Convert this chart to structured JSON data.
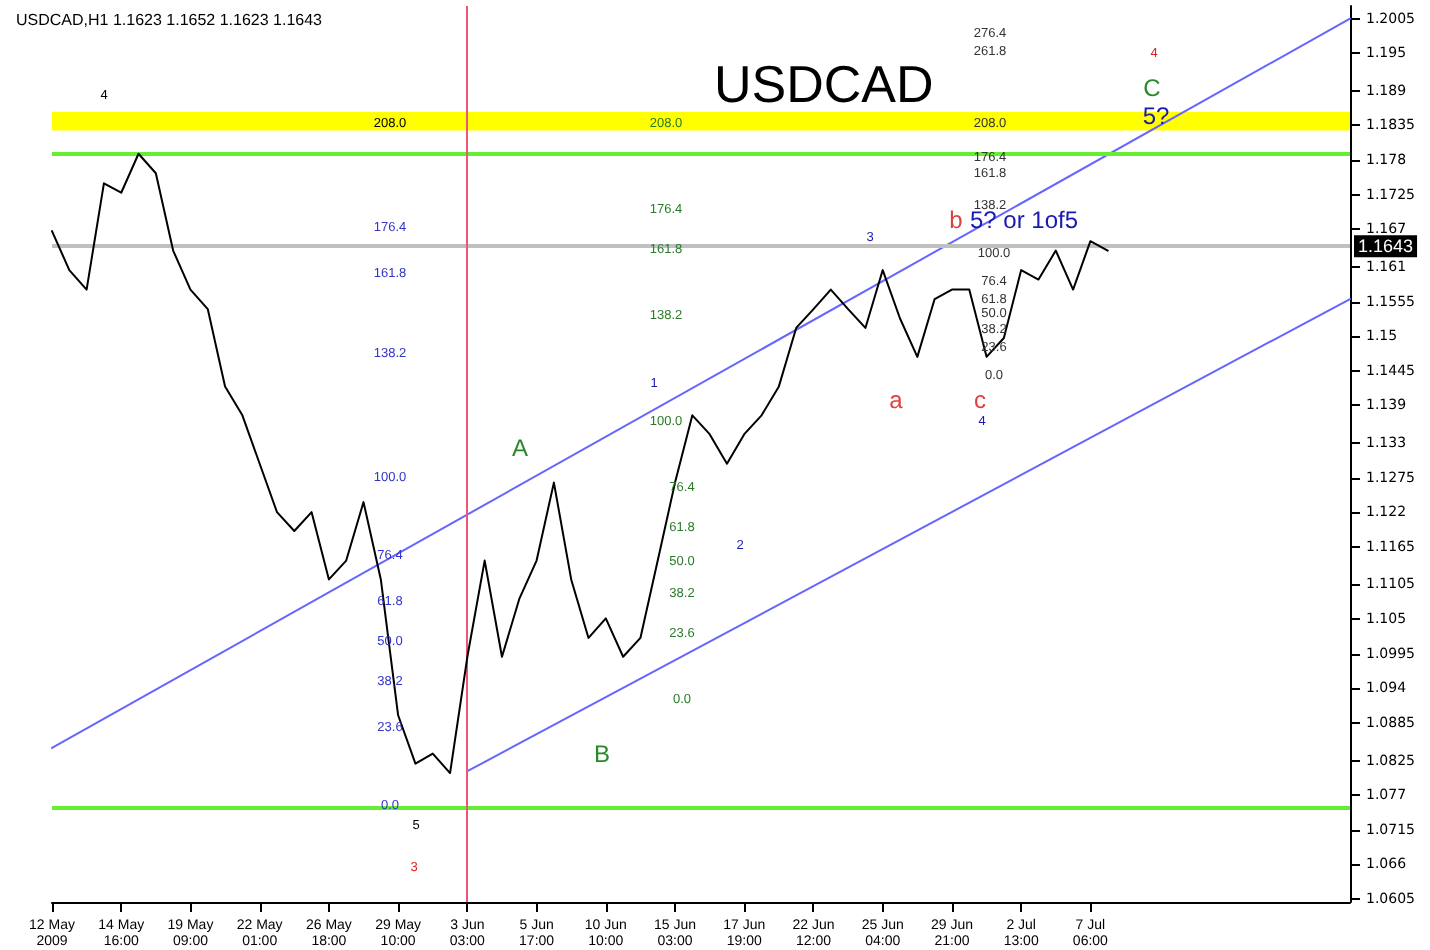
{
  "chart_data": {
    "type": "line",
    "title": "USDCAD",
    "subtitle": "USDCAD,H1 1.1623 1.1652 1.1623 1.1643",
    "categories": [
      "12 May 2009",
      null,
      null,
      null,
      "14 May 16:00",
      null,
      null,
      null,
      "19 May 09:00",
      null,
      null,
      null,
      "22 May 01:00",
      null,
      null,
      null,
      "26 May 18:00",
      null,
      null,
      null,
      "29 May 10:00",
      null,
      null,
      null,
      "3 Jun 03:00",
      null,
      null,
      null,
      "5 Jun 17:00",
      null,
      null,
      null,
      "10 Jun 10:00",
      null,
      null,
      null,
      "15 Jun 03:00",
      null,
      null,
      null,
      "17 Jun 19:00",
      null,
      null,
      null,
      "22 Jun 12:00",
      null,
      null,
      null,
      "25 Jun 04:00",
      null,
      null,
      null,
      "29 Jun 21:00",
      null,
      null,
      null,
      "2 Jul 13:00",
      null,
      null,
      null,
      "7 Jul 06:00",
      null,
      null,
      null,
      null,
      null,
      null,
      null,
      null,
      null,
      null,
      null,
      null,
      null,
      null,
      null
    ],
    "series": [
      {
        "color": "#000000",
        "values": [
          1.1667,
          1.1605,
          1.1574,
          1.1743,
          1.1728,
          1.179,
          1.1759,
          1.1636,
          1.1574,
          1.1543,
          1.142,
          1.1374,
          1.1297,
          1.122,
          1.119,
          1.122,
          1.1113,
          1.1143,
          1.1236,
          1.1113,
          1.0897,
          1.082,
          1.0836,
          1.0805,
          1.099,
          1.1143,
          1.099,
          1.1082,
          1.1143,
          1.1267,
          1.1113,
          1.102,
          1.1051,
          1.099,
          1.102,
          1.1143,
          1.1267,
          1.1374,
          1.1344,
          1.1297,
          1.1344,
          1.1374,
          1.142,
          1.1513,
          1.1543,
          1.1574,
          1.1543,
          1.1513,
          1.1605,
          1.1528,
          1.1467,
          1.1559,
          1.1574,
          1.1574,
          1.1467,
          1.1497,
          1.1605,
          1.159,
          1.1636,
          1.1574,
          1.1651,
          1.1636,
          null,
          null,
          null,
          null,
          null,
          null,
          null,
          null,
          null,
          null,
          null,
          null,
          null,
          null
        ]
      },
      {
        "type": "line",
        "color": "#6666ff",
        "values": [
          1.0845,
          null,
          null,
          null,
          null,
          null,
          null,
          null,
          null,
          null,
          null,
          null,
          null,
          null,
          null,
          null,
          null,
          null,
          null,
          null,
          null,
          null,
          null,
          null,
          null,
          null,
          null,
          null,
          null,
          null,
          null,
          null,
          null,
          null,
          null,
          null,
          null,
          null,
          null,
          null,
          null,
          null,
          null,
          null,
          null,
          null,
          null,
          null,
          null,
          null,
          null,
          null,
          null,
          null,
          null,
          null,
          null,
          null,
          null,
          null,
          null,
          null,
          null,
          null,
          null,
          null,
          null,
          null,
          null,
          null,
          null,
          null,
          null,
          null,
          null,
          1.2005
        ]
      },
      {
        "type": "line",
        "color": "#6666ff",
        "values": [
          null,
          null,
          null,
          null,
          null,
          null,
          null,
          null,
          null,
          null,
          null,
          null,
          null,
          null,
          null,
          null,
          null,
          null,
          null,
          null,
          null,
          null,
          null,
          null,
          1.0808,
          null,
          null,
          null,
          null,
          null,
          null,
          null,
          null,
          null,
          null,
          null,
          null,
          null,
          null,
          null,
          null,
          null,
          null,
          null,
          null,
          null,
          null,
          null,
          null,
          null,
          null,
          null,
          null,
          null,
          null,
          null,
          null,
          null,
          null,
          null,
          null,
          null,
          null,
          null,
          null,
          null,
          null,
          null,
          null,
          null,
          null,
          null,
          null,
          null,
          null,
          1.1559
        ]
      }
    ],
    "ylim": [
      1.06,
      1.2025
    ],
    "yticks": [
      1.0605,
      1.066,
      1.0715,
      1.077,
      1.0825,
      1.0885,
      1.094,
      1.0995,
      1.105,
      1.1105,
      1.1165,
      1.122,
      1.1275,
      1.133,
      1.139,
      1.1445,
      1.15,
      1.1555,
      1.161,
      1.167,
      1.1725,
      1.178,
      1.1835,
      1.189,
      1.195,
      1.2005
    ],
    "ref_lines": [
      {
        "axis": "y",
        "value": 1.179,
        "color": "#66ee33"
      },
      {
        "axis": "y",
        "value": 1.075,
        "color": "#66ee33"
      },
      {
        "axis": "y",
        "value": 1.1643,
        "color": "#c0c0c0",
        "label": "1.1643"
      },
      {
        "axis": "x",
        "value": "3 Jun 03:00",
        "color": "#ee5577"
      }
    ],
    "bands": [
      {
        "axis": "y",
        "from": 1.1827,
        "to": 1.1857,
        "color": "#ffff00"
      }
    ],
    "annotations": [
      "4",
      "5",
      "3",
      "A",
      "B",
      "1",
      "2",
      "3",
      "a",
      "b",
      "5? or 1of5",
      "c",
      "4",
      "4",
      "C",
      "5?",
      "208.0",
      "176.4",
      "161.8",
      "138.2",
      "100.0",
      "76.4",
      "61.8",
      "50.0",
      "38.2",
      "23.6",
      "0.0",
      "208.0",
      "176.4",
      "161.8",
      "138.2",
      "100.0",
      "76.4",
      "61.8",
      "50.0",
      "38.2",
      "23.6",
      "0.0",
      "276.4",
      "261.8",
      "208.0",
      "176.4",
      "161.8",
      "138.2",
      "100.0",
      "76.4",
      "61.8",
      "50.0",
      "38.2",
      "23.6",
      "0.0"
    ],
    "grid": false,
    "marker": "none",
    "line_style": "solid"
  }
}
